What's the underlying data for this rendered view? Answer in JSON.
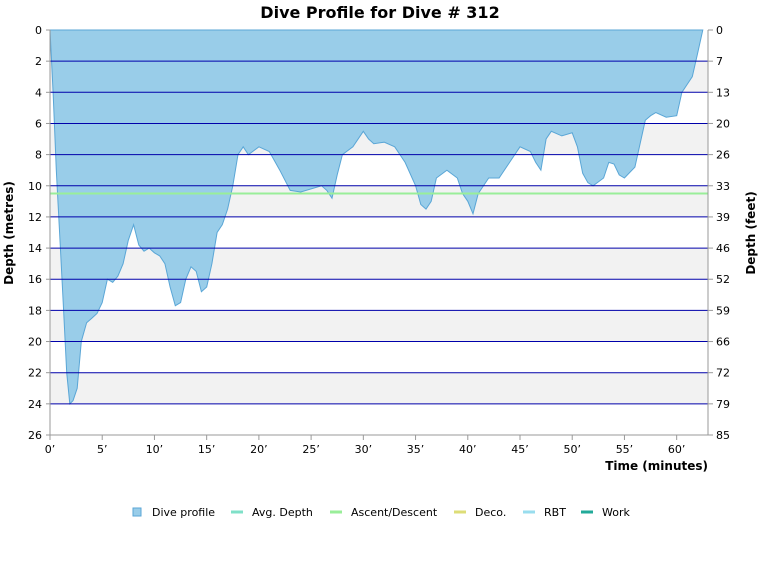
{
  "chart_data": {
    "type": "area",
    "title": "Dive Profile for Dive # 312",
    "xlabel": "Time (minutes)",
    "ylabel": "Depth (metres)",
    "y2label": "Depth (feet)",
    "xlim": [
      0,
      63
    ],
    "ylim": [
      0,
      26
    ],
    "x_ticks": [
      "0’",
      "5’",
      "10’",
      "15’",
      "20’",
      "25’",
      "30’",
      "35’",
      "40’",
      "45’",
      "50’",
      "55’",
      "60’"
    ],
    "y_ticks": [
      "0",
      "2",
      "4",
      "6",
      "8",
      "10",
      "12",
      "14",
      "16",
      "18",
      "20",
      "22",
      "24",
      "26"
    ],
    "y2_ticks": [
      "0",
      "7",
      "13",
      "20",
      "26",
      "33",
      "39",
      "46",
      "52",
      "59",
      "66",
      "72",
      "79",
      "85"
    ],
    "avg_depth": 10.5,
    "grid": true,
    "legend_position": "bottom",
    "legend": [
      {
        "label": "Dive profile",
        "color": "#99cde9",
        "kind": "box"
      },
      {
        "label": "Avg. Depth",
        "color": "#7fe0c8",
        "kind": "line"
      },
      {
        "label": "Ascent/Descent",
        "color": "#99ee99",
        "kind": "line"
      },
      {
        "label": "Deco.",
        "color": "#dddd77",
        "kind": "line"
      },
      {
        "label": "RBT",
        "color": "#99ddee",
        "kind": "line"
      },
      {
        "label": "Work",
        "color": "#22aa99",
        "kind": "line"
      }
    ],
    "series": [
      {
        "x": [
          0,
          0.3,
          0.6,
          1.0,
          1.3,
          1.6,
          1.9,
          2.2,
          2.6,
          3.0,
          3.5,
          4.0,
          4.5,
          5.0,
          5.5,
          6.0,
          6.5,
          7.0,
          7.5,
          8.0,
          8.5,
          9.0,
          9.5,
          10.0,
          10.5,
          11.0,
          11.5,
          12.0,
          12.5,
          13.0,
          13.5,
          14.0,
          14.5,
          15.0,
          15.5,
          16.0,
          16.5,
          17.0,
          17.5,
          18.0,
          18.5,
          19.0,
          20.0,
          21.0,
          22.0,
          23.0,
          24.0,
          25.0,
          26.0,
          26.5,
          27.0,
          27.5,
          28.0,
          29.0,
          30.0,
          30.5,
          31.0,
          32.0,
          33.0,
          34.0,
          35.0,
          35.5,
          36.0,
          36.5,
          37.0,
          38.0,
          39.0,
          39.5,
          40.0,
          40.5,
          41.0,
          42.0,
          43.0,
          44.0,
          45.0,
          46.0,
          46.5,
          47.0,
          47.5,
          48.0,
          49.0,
          50.0,
          50.5,
          51.0,
          51.5,
          52.0,
          53.0,
          53.5,
          54.0,
          54.5,
          55.0,
          56.0,
          57.0,
          57.5,
          58.0,
          59.0,
          60.0,
          60.5,
          61.0,
          61.5,
          62.0,
          62.5
        ],
        "y": [
          0,
          4,
          9,
          14,
          18,
          22,
          24,
          23.8,
          23,
          20,
          18.8,
          18.5,
          18.2,
          17.5,
          16.0,
          16.2,
          15.8,
          15,
          13.5,
          12.5,
          13.8,
          14.2,
          14,
          14.3,
          14.5,
          15,
          16.5,
          17.7,
          17.5,
          16,
          15.2,
          15.5,
          16.8,
          16.5,
          15,
          13,
          12.5,
          11.5,
          10,
          8,
          7.5,
          8,
          7.5,
          7.8,
          9,
          10.3,
          10.4,
          10.2,
          10.0,
          10.3,
          10.8,
          9.3,
          8.0,
          7.5,
          6.5,
          7.0,
          7.3,
          7.2,
          7.5,
          8.5,
          10,
          11.2,
          11.5,
          11.0,
          9.5,
          9.0,
          9.5,
          10.5,
          11.0,
          11.8,
          10.5,
          9.5,
          9.5,
          8.5,
          7.5,
          7.8,
          8.5,
          9.0,
          7.0,
          6.5,
          6.8,
          6.6,
          7.5,
          9.2,
          9.8,
          10.0,
          9.5,
          8.5,
          8.6,
          9.3,
          9.5,
          8.8,
          5.8,
          5.5,
          5.3,
          5.6,
          5.5,
          4.0,
          3.5,
          3.0,
          1.5,
          0
        ]
      }
    ]
  }
}
